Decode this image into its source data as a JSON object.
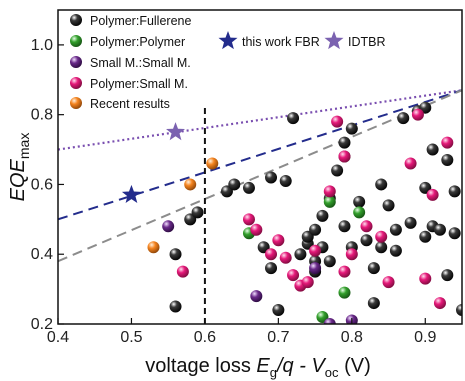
{
  "chart_data": {
    "type": "scatter",
    "title": "",
    "xlabel": "voltage loss E_g/q - V_oc (V)",
    "xlabel_parts": {
      "main": "voltage loss ",
      "E": "E",
      "g": "g",
      "q": "/q - ",
      "V": "V",
      "oc": "oc",
      "unit": " (V)"
    },
    "ylabel": "EQE_max",
    "ylabel_parts": {
      "main": "EQE",
      "sub": "max"
    },
    "xlim": [
      0.4,
      0.95
    ],
    "ylim": [
      0.2,
      1.1
    ],
    "xticks": [
      "0.4",
      "0.5",
      "0.6",
      "0.7",
      "0.8",
      "0.9"
    ],
    "yticks": [
      "0.2",
      "0.4",
      "0.6",
      "0.8",
      "1.0"
    ],
    "grid": false,
    "legend_position": "top",
    "series": [
      {
        "name": "Polymer:Fullerene",
        "color": "#3a3a3a",
        "marker": "sphere",
        "points": [
          [
            0.56,
            0.4
          ],
          [
            0.56,
            0.25
          ],
          [
            0.58,
            0.5
          ],
          [
            0.59,
            0.52
          ],
          [
            0.63,
            0.58
          ],
          [
            0.64,
            0.6
          ],
          [
            0.66,
            0.59
          ],
          [
            0.68,
            0.42
          ],
          [
            0.69,
            0.62
          ],
          [
            0.69,
            0.36
          ],
          [
            0.7,
            0.24
          ],
          [
            0.71,
            0.61
          ],
          [
            0.72,
            0.79
          ],
          [
            0.73,
            0.4
          ],
          [
            0.74,
            0.43
          ],
          [
            0.74,
            0.45
          ],
          [
            0.75,
            0.38
          ],
          [
            0.75,
            0.35
          ],
          [
            0.75,
            0.47
          ],
          [
            0.76,
            0.51
          ],
          [
            0.76,
            0.42
          ],
          [
            0.77,
            0.56
          ],
          [
            0.77,
            0.38
          ],
          [
            0.78,
            0.64
          ],
          [
            0.79,
            0.72
          ],
          [
            0.79,
            0.68
          ],
          [
            0.79,
            0.48
          ],
          [
            0.8,
            0.76
          ],
          [
            0.8,
            0.42
          ],
          [
            0.81,
            0.55
          ],
          [
            0.82,
            0.44
          ],
          [
            0.83,
            0.36
          ],
          [
            0.84,
            0.6
          ],
          [
            0.84,
            0.42
          ],
          [
            0.85,
            0.54
          ],
          [
            0.86,
            0.47
          ],
          [
            0.87,
            0.79
          ],
          [
            0.88,
            0.49
          ],
          [
            0.89,
            0.81
          ],
          [
            0.9,
            0.45
          ],
          [
            0.9,
            0.59
          ],
          [
            0.91,
            0.7
          ],
          [
            0.91,
            0.48
          ],
          [
            0.93,
            0.67
          ],
          [
            0.92,
            0.47
          ],
          [
            0.94,
            0.46
          ],
          [
            0.93,
            0.34
          ],
          [
            0.94,
            0.58
          ],
          [
            0.9,
            0.82
          ],
          [
            0.86,
            0.41
          ],
          [
            0.83,
            0.26
          ],
          [
            0.95,
            0.24
          ]
        ]
      },
      {
        "name": "Polymer:Polymer",
        "color": "#33a02c",
        "marker": "sphere",
        "points": [
          [
            0.66,
            0.46
          ],
          [
            0.76,
            0.22
          ],
          [
            0.77,
            0.55
          ],
          [
            0.79,
            0.29
          ],
          [
            0.81,
            0.52
          ]
        ]
      },
      {
        "name": "Small M.:Small M.",
        "color": "#6a2a8a",
        "marker": "sphere",
        "points": [
          [
            0.55,
            0.48
          ],
          [
            0.67,
            0.28
          ],
          [
            0.75,
            0.36
          ],
          [
            0.77,
            0.2
          ],
          [
            0.8,
            0.21
          ]
        ]
      },
      {
        "name": "Polymer:Small M.",
        "color": "#e6197a",
        "marker": "sphere",
        "points": [
          [
            0.57,
            0.35
          ],
          [
            0.66,
            0.5
          ],
          [
            0.67,
            0.47
          ],
          [
            0.69,
            0.4
          ],
          [
            0.7,
            0.44
          ],
          [
            0.71,
            0.39
          ],
          [
            0.72,
            0.34
          ],
          [
            0.73,
            0.31
          ],
          [
            0.74,
            0.32
          ],
          [
            0.75,
            0.41
          ],
          [
            0.77,
            0.58
          ],
          [
            0.78,
            0.78
          ],
          [
            0.79,
            0.68
          ],
          [
            0.79,
            0.35
          ],
          [
            0.8,
            0.4
          ],
          [
            0.82,
            0.48
          ],
          [
            0.84,
            0.45
          ],
          [
            0.85,
            0.32
          ],
          [
            0.88,
            0.66
          ],
          [
            0.89,
            0.8
          ],
          [
            0.9,
            0.33
          ],
          [
            0.91,
            0.57
          ],
          [
            0.92,
            0.26
          ],
          [
            0.93,
            0.72
          ]
        ]
      },
      {
        "name": "Recent results",
        "color": "#f5841f",
        "marker": "sphere",
        "points": [
          [
            0.53,
            0.42
          ],
          [
            0.58,
            0.6
          ],
          [
            0.61,
            0.66
          ]
        ]
      },
      {
        "name": "this work FBR",
        "color": "#232c8c",
        "marker": "star",
        "points": [
          [
            0.5,
            0.57
          ]
        ]
      },
      {
        "name": "IDTBR",
        "color": "#7b62b0",
        "marker": "star",
        "points": [
          [
            0.56,
            0.75
          ]
        ]
      }
    ],
    "reference_lines": [
      {
        "color": "#7a4fb0",
        "style": "dotted",
        "points": [
          [
            0.4,
            0.7
          ],
          [
            0.95,
            0.87
          ]
        ]
      },
      {
        "color": "#232c8c",
        "style": "dashed",
        "points": [
          [
            0.4,
            0.5
          ],
          [
            0.95,
            0.87
          ]
        ]
      },
      {
        "color": "#8c8c8c",
        "style": "dashed",
        "points": [
          [
            0.4,
            0.38
          ],
          [
            0.95,
            0.87
          ]
        ]
      },
      {
        "color": "#111111",
        "style": "dashed-vertical",
        "points": [
          [
            0.6,
            0.2
          ],
          [
            0.6,
            0.82
          ]
        ]
      }
    ]
  }
}
